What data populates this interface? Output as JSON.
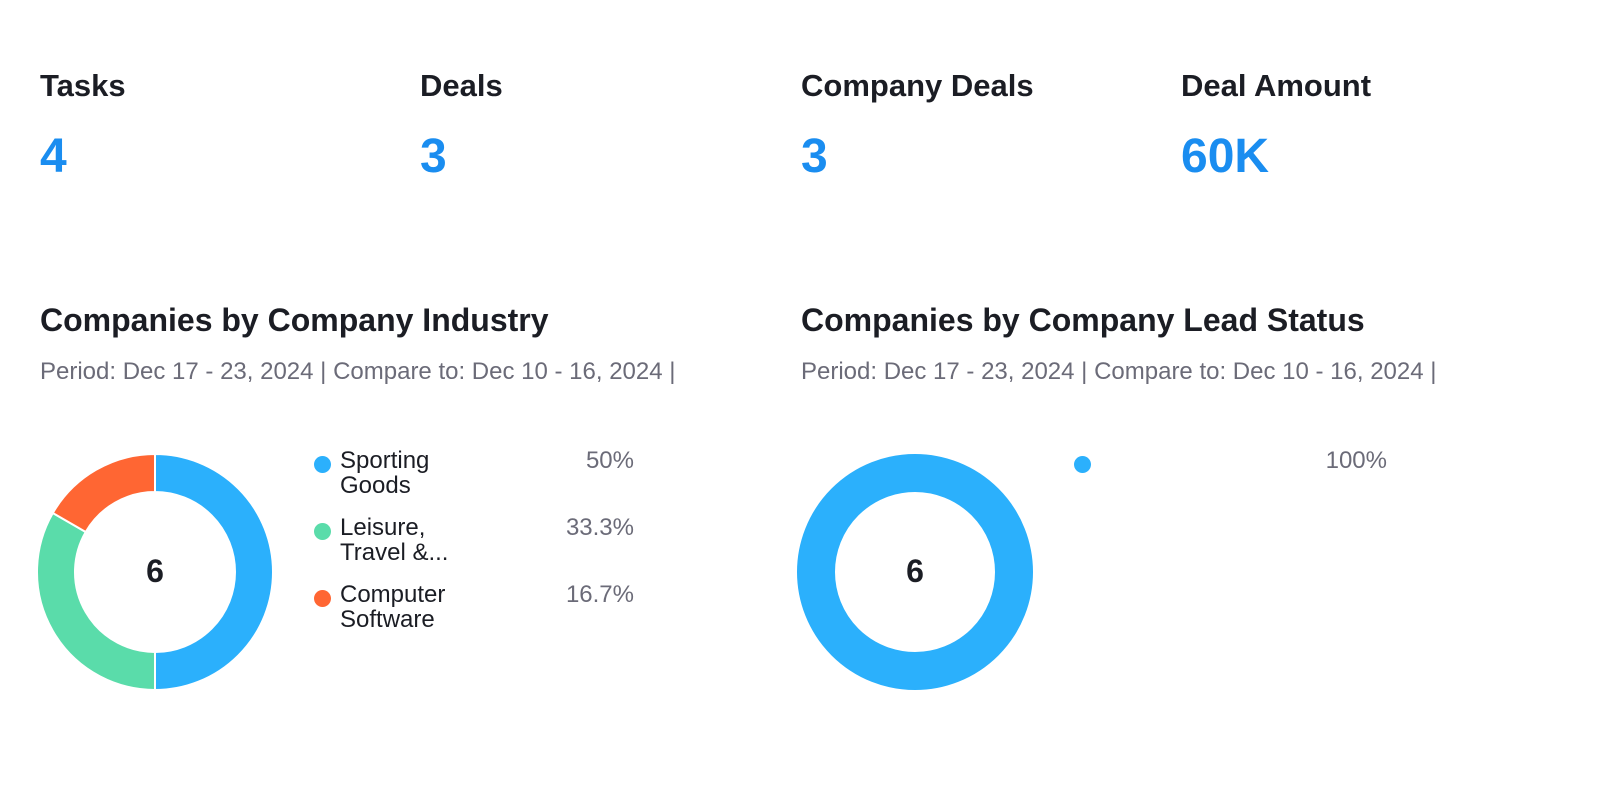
{
  "kpis": [
    {
      "label": "Tasks",
      "value": "4"
    },
    {
      "label": "Deals",
      "value": "3"
    },
    {
      "label": "Company Deals",
      "value": "3"
    },
    {
      "label": "Deal Amount",
      "value": "60K"
    }
  ],
  "chart_data": [
    {
      "type": "pie",
      "title": "Companies by Company Industry",
      "subtitle": "Period: Dec 17 - 23, 2024 | Compare to: Dec 10 - 16, 2024 |",
      "center_label": "6",
      "donut": true,
      "legend_position": "right",
      "slices": [
        {
          "name": "Sporting Goods",
          "value": 3,
          "percent_label": "50%",
          "color": "#2bb0fc"
        },
        {
          "name": "Leisure, Travel &...",
          "value": 2,
          "percent_label": "33.3%",
          "color": "#5adcaa"
        },
        {
          "name": "Computer Software",
          "value": 1,
          "percent_label": "16.7%",
          "color": "#ff6633"
        }
      ]
    },
    {
      "type": "pie",
      "title": "Companies by Company Lead Status",
      "subtitle": "Period: Dec 17 - 23, 2024 | Compare to: Dec 10 - 16, 2024 |",
      "center_label": "6",
      "donut": true,
      "legend_position": "right",
      "slices": [
        {
          "name": "",
          "value": 6,
          "percent_label": "100%",
          "color": "#2bb0fc"
        }
      ]
    }
  ]
}
